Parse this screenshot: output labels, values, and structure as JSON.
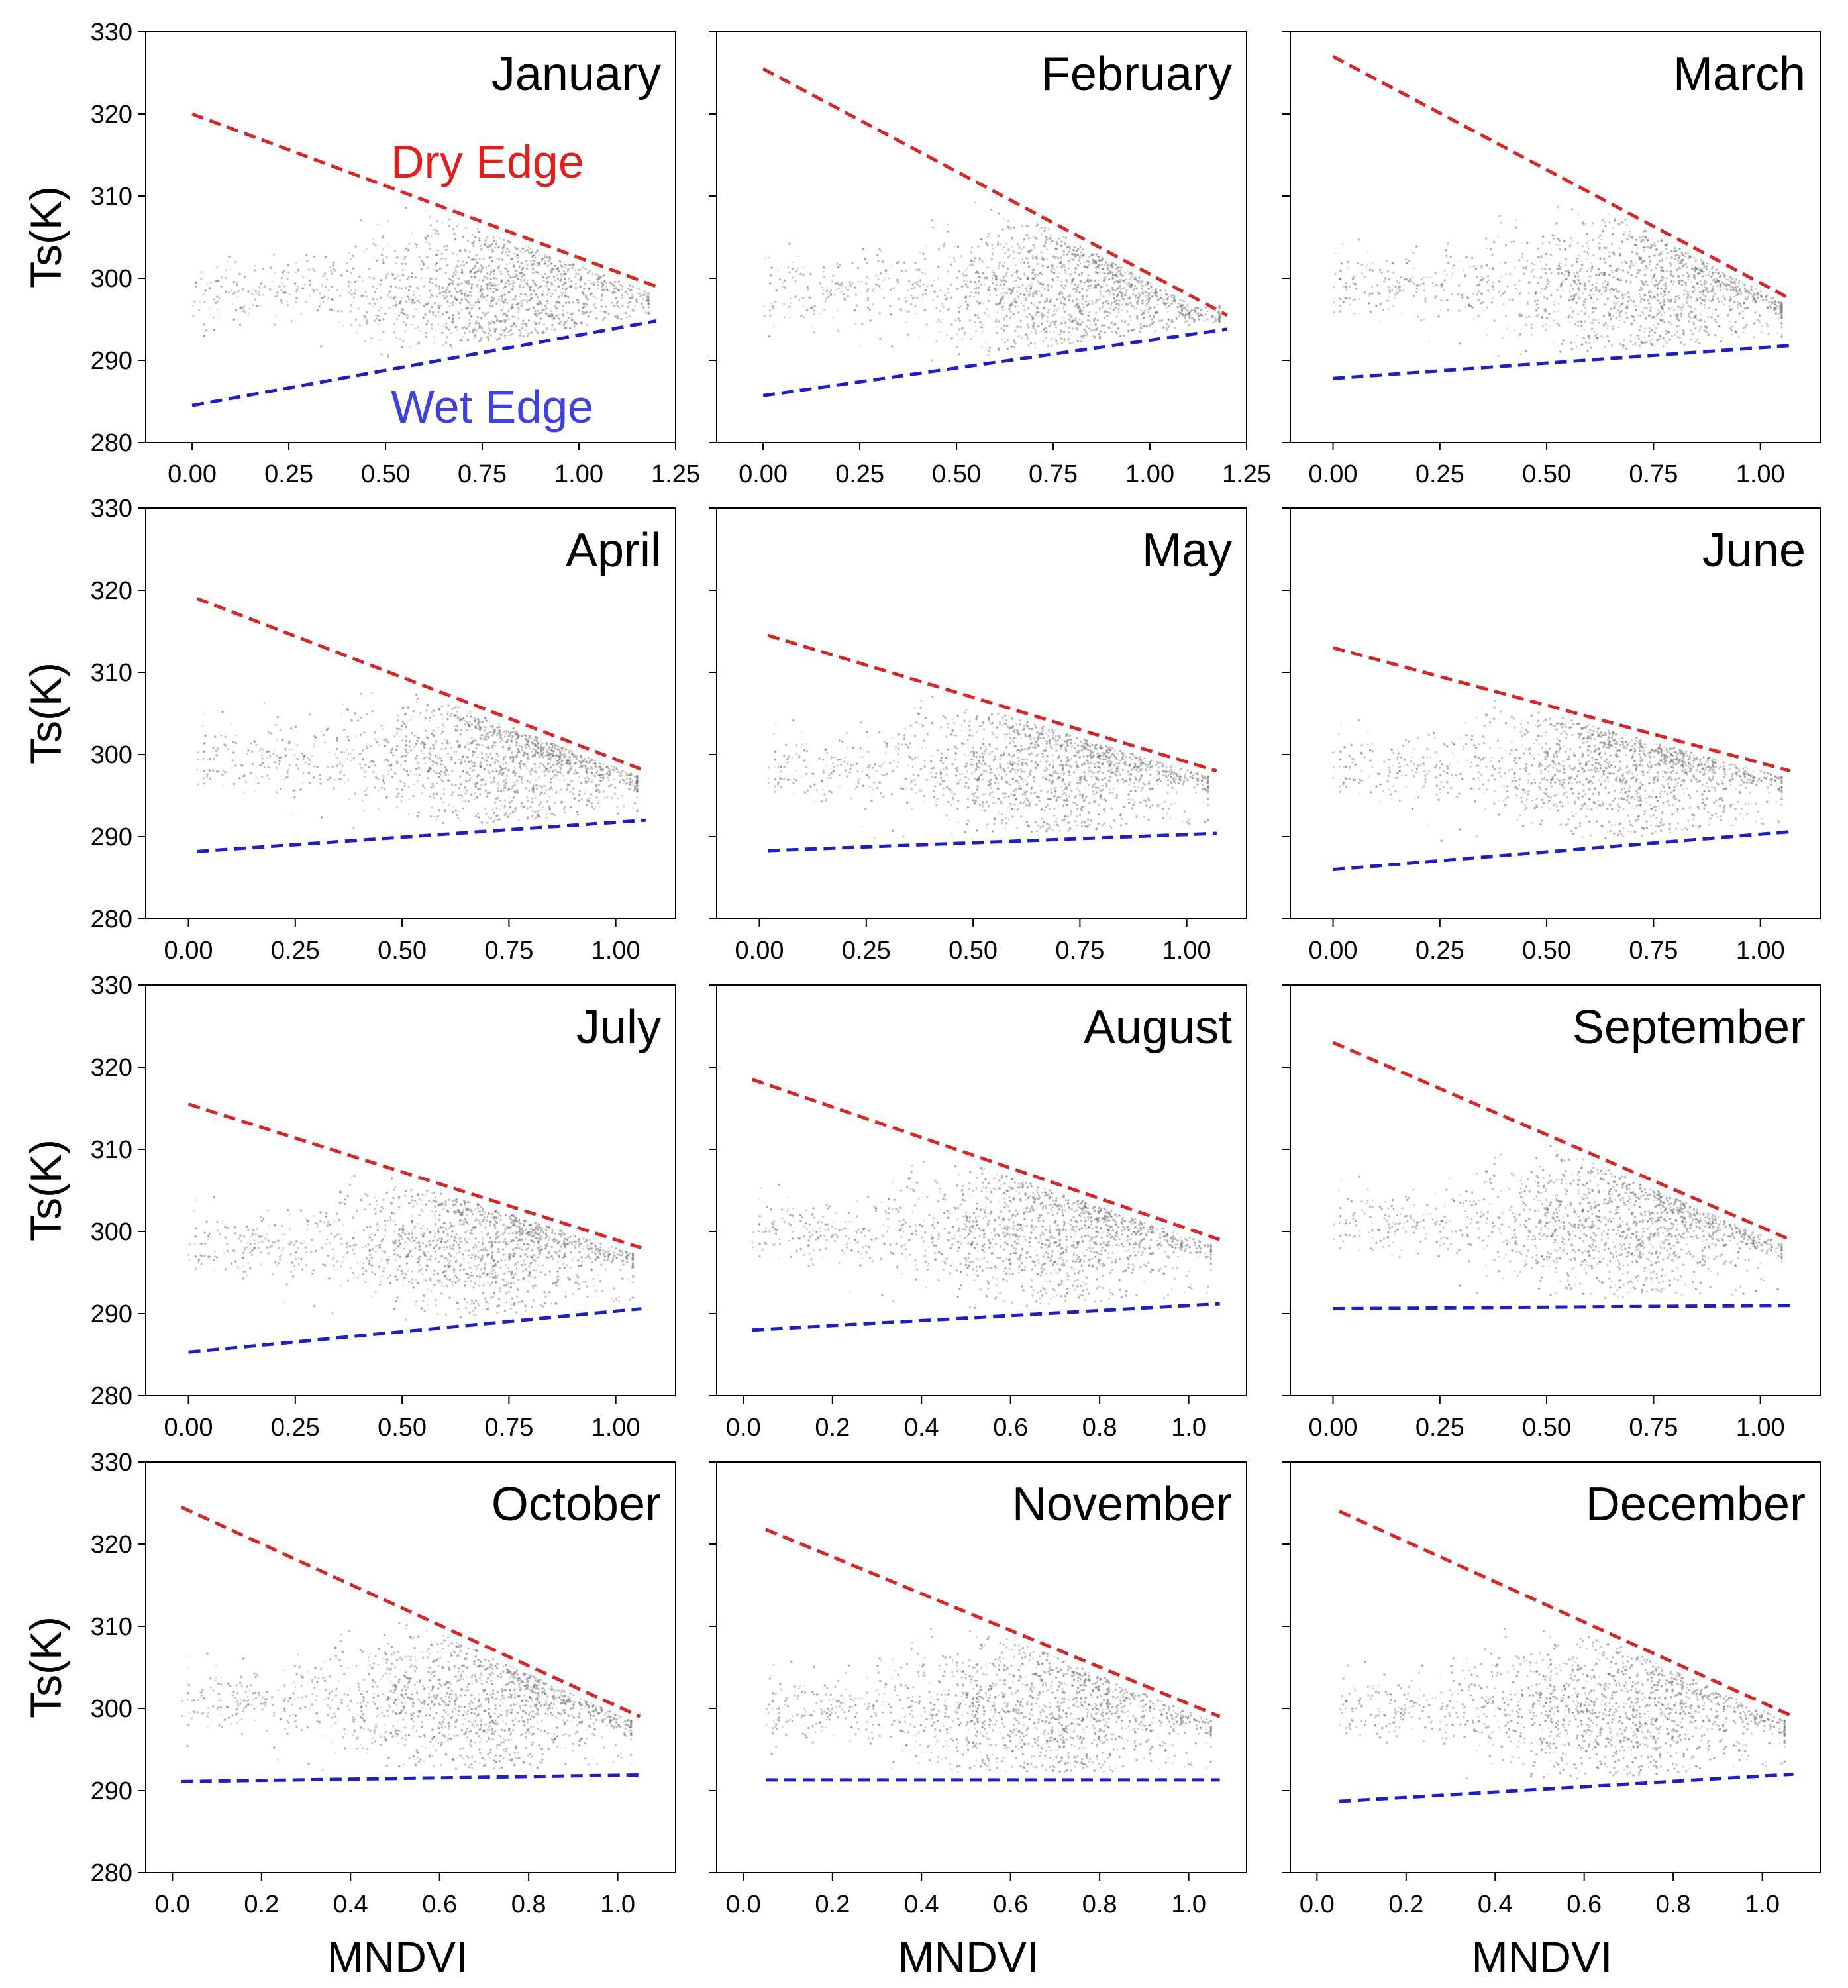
{
  "colors": {
    "dry_edge": "#d62728",
    "wet_edge": "#1f1fbf",
    "dry_label": "#e0201c",
    "wet_label": "#4040dd",
    "points": "#777777"
  },
  "labels": {
    "dry_edge": "Dry Edge",
    "wet_edge": "Wet Edge"
  },
  "chart_data": [
    {
      "type": "scatter",
      "title": "January",
      "xlim": [
        -0.12,
        1.25
      ],
      "ylim": [
        280,
        330
      ],
      "xticks": [
        "0.00",
        "0.25",
        "0.50",
        "0.75",
        "1.00",
        "1.25"
      ],
      "yticks": [
        "280",
        "290",
        "300",
        "310",
        "320",
        "330"
      ],
      "ylabel": "Ts(K)",
      "xlabel": "",
      "dry_edge": [
        [
          0.0,
          320
        ],
        [
          1.2,
          299
        ]
      ],
      "wet_edge": [
        [
          0.0,
          284.5
        ],
        [
          1.2,
          294.8
        ]
      ],
      "cloud": {
        "x_range": [
          0.0,
          1.2
        ],
        "center": [
          0.8,
          298.5
        ],
        "spread_ts": 4
      }
    },
    {
      "type": "scatter",
      "title": "February",
      "xlim": [
        -0.12,
        1.25
      ],
      "ylim": [
        280,
        330
      ],
      "xticks": [
        "0.00",
        "0.25",
        "0.50",
        "0.75",
        "1.00",
        "1.25"
      ],
      "yticks": [
        "280",
        "290",
        "300",
        "310",
        "320",
        "330"
      ],
      "ylabel": "",
      "xlabel": "",
      "dry_edge": [
        [
          0.0,
          325.5
        ],
        [
          1.2,
          295.5
        ]
      ],
      "wet_edge": [
        [
          0.0,
          285.7
        ],
        [
          1.2,
          293.8
        ]
      ],
      "cloud": {
        "x_range": [
          0.0,
          1.2
        ],
        "center": [
          0.8,
          298.5
        ],
        "spread_ts": 4
      }
    },
    {
      "type": "scatter",
      "title": "March",
      "xlim": [
        -0.1,
        1.14
      ],
      "ylim": [
        280,
        330
      ],
      "xticks": [
        "0.00",
        "0.25",
        "0.50",
        "0.75",
        "1.00"
      ],
      "yticks": [
        "280",
        "290",
        "300",
        "310",
        "320",
        "330"
      ],
      "ylabel": "",
      "xlabel": "",
      "dry_edge": [
        [
          0.0,
          327
        ],
        [
          1.07,
          297.5
        ]
      ],
      "wet_edge": [
        [
          0.0,
          287.8
        ],
        [
          1.07,
          291.8
        ]
      ],
      "cloud": {
        "x_range": [
          0.0,
          1.07
        ],
        "center": [
          0.75,
          299
        ],
        "spread_ts": 4
      }
    },
    {
      "type": "scatter",
      "title": "April",
      "xlim": [
        -0.1,
        1.14
      ],
      "ylim": [
        280,
        330
      ],
      "xticks": [
        "0.00",
        "0.25",
        "0.50",
        "0.75",
        "1.00"
      ],
      "yticks": [
        "280",
        "290",
        "300",
        "310",
        "320",
        "330"
      ],
      "ylabel": "Ts(K)",
      "xlabel": "",
      "dry_edge": [
        [
          0.02,
          319
        ],
        [
          1.07,
          298
        ]
      ],
      "wet_edge": [
        [
          0.02,
          288.2
        ],
        [
          1.07,
          292
        ]
      ],
      "cloud": {
        "x_range": [
          0.02,
          1.07
        ],
        "center": [
          0.75,
          299.5
        ],
        "spread_ts": 4
      }
    },
    {
      "type": "scatter",
      "title": "May",
      "xlim": [
        -0.1,
        1.14
      ],
      "ylim": [
        280,
        330
      ],
      "xticks": [
        "0.00",
        "0.25",
        "0.50",
        "0.75",
        "1.00"
      ],
      "yticks": [
        "280",
        "290",
        "300",
        "310",
        "320",
        "330"
      ],
      "ylabel": "",
      "xlabel": "",
      "dry_edge": [
        [
          0.02,
          314.5
        ],
        [
          1.07,
          298
        ]
      ],
      "wet_edge": [
        [
          0.02,
          288.3
        ],
        [
          1.07,
          290.4
        ]
      ],
      "cloud": {
        "x_range": [
          0.02,
          1.07
        ],
        "center": [
          0.7,
          298.5
        ],
        "spread_ts": 4
      }
    },
    {
      "type": "scatter",
      "title": "June",
      "xlim": [
        -0.1,
        1.14
      ],
      "ylim": [
        280,
        330
      ],
      "xticks": [
        "0.00",
        "0.25",
        "0.50",
        "0.75",
        "1.00"
      ],
      "yticks": [
        "280",
        "290",
        "300",
        "310",
        "320",
        "330"
      ],
      "ylabel": "",
      "xlabel": "",
      "dry_edge": [
        [
          0.0,
          313
        ],
        [
          1.07,
          298
        ]
      ],
      "wet_edge": [
        [
          0.0,
          286
        ],
        [
          1.07,
          290.6
        ]
      ],
      "cloud": {
        "x_range": [
          0.0,
          1.07
        ],
        "center": [
          0.7,
          298.5
        ],
        "spread_ts": 4
      }
    },
    {
      "type": "scatter",
      "title": "July",
      "xlim": [
        -0.1,
        1.14
      ],
      "ylim": [
        280,
        330
      ],
      "xticks": [
        "0.00",
        "0.25",
        "0.50",
        "0.75",
        "1.00"
      ],
      "yticks": [
        "280",
        "290",
        "300",
        "310",
        "320",
        "330"
      ],
      "ylabel": "Ts(K)",
      "xlabel": "",
      "dry_edge": [
        [
          0.0,
          315.5
        ],
        [
          1.06,
          298
        ]
      ],
      "wet_edge": [
        [
          0.0,
          285.3
        ],
        [
          1.06,
          290.6
        ]
      ],
      "cloud": {
        "x_range": [
          0.0,
          1.06
        ],
        "center": [
          0.7,
          298.5
        ],
        "spread_ts": 4
      }
    },
    {
      "type": "scatter",
      "title": "August",
      "xlim": [
        -0.06,
        1.13
      ],
      "ylim": [
        280,
        330
      ],
      "xticks": [
        "0.0",
        "0.2",
        "0.4",
        "0.6",
        "0.8",
        "1.0"
      ],
      "yticks": [
        "280",
        "290",
        "300",
        "310",
        "320",
        "330"
      ],
      "ylabel": "",
      "xlabel": "",
      "dry_edge": [
        [
          0.02,
          318.5
        ],
        [
          1.07,
          299
        ]
      ],
      "wet_edge": [
        [
          0.02,
          288
        ],
        [
          1.07,
          291.2
        ]
      ],
      "cloud": {
        "x_range": [
          0.02,
          1.07
        ],
        "center": [
          0.7,
          300
        ],
        "spread_ts": 4
      }
    },
    {
      "type": "scatter",
      "title": "September",
      "xlim": [
        -0.1,
        1.14
      ],
      "ylim": [
        280,
        330
      ],
      "xticks": [
        "0.00",
        "0.25",
        "0.50",
        "0.75",
        "1.00"
      ],
      "yticks": [
        "280",
        "290",
        "300",
        "310",
        "320",
        "330"
      ],
      "ylabel": "",
      "xlabel": "",
      "dry_edge": [
        [
          0.0,
          323
        ],
        [
          1.07,
          299
        ]
      ],
      "wet_edge": [
        [
          0.0,
          290.6
        ],
        [
          1.07,
          291
        ]
      ],
      "cloud": {
        "x_range": [
          0.0,
          1.07
        ],
        "center": [
          0.7,
          301
        ],
        "spread_ts": 4
      }
    },
    {
      "type": "scatter",
      "title": "October",
      "xlim": [
        -0.06,
        1.13
      ],
      "ylim": [
        280,
        330
      ],
      "xticks": [
        "0.0",
        "0.2",
        "0.4",
        "0.6",
        "0.8",
        "1.0"
      ],
      "yticks": [
        "280",
        "290",
        "300",
        "310",
        "320",
        "330"
      ],
      "ylabel": "Ts(K)",
      "xlabel": "MNDVI",
      "dry_edge": [
        [
          0.02,
          324.5
        ],
        [
          1.05,
          299
        ]
      ],
      "wet_edge": [
        [
          0.02,
          291.1
        ],
        [
          1.05,
          291.9
        ]
      ],
      "cloud": {
        "x_range": [
          0.02,
          1.05
        ],
        "center": [
          0.7,
          301
        ],
        "spread_ts": 4
      }
    },
    {
      "type": "scatter",
      "title": "November",
      "xlim": [
        -0.06,
        1.13
      ],
      "ylim": [
        280,
        330
      ],
      "xticks": [
        "0.0",
        "0.2",
        "0.4",
        "0.6",
        "0.8",
        "1.0"
      ],
      "yticks": [
        "280",
        "290",
        "300",
        "310",
        "320",
        "330"
      ],
      "ylabel": "",
      "xlabel": "MNDVI",
      "dry_edge": [
        [
          0.05,
          321.8
        ],
        [
          1.07,
          299
        ]
      ],
      "wet_edge": [
        [
          0.05,
          291.3
        ],
        [
          1.07,
          291.3
        ]
      ],
      "cloud": {
        "x_range": [
          0.05,
          1.07
        ],
        "center": [
          0.7,
          300
        ],
        "spread_ts": 4
      }
    },
    {
      "type": "scatter",
      "title": "December",
      "xlim": [
        -0.06,
        1.13
      ],
      "ylim": [
        280,
        330
      ],
      "xticks": [
        "0.0",
        "0.2",
        "0.4",
        "0.6",
        "0.8",
        "1.0"
      ],
      "yticks": [
        "280",
        "290",
        "300",
        "310",
        "320",
        "330"
      ],
      "ylabel": "",
      "xlabel": "MNDVI",
      "dry_edge": [
        [
          0.05,
          324
        ],
        [
          1.07,
          299
        ]
      ],
      "wet_edge": [
        [
          0.05,
          288.7
        ],
        [
          1.07,
          292
        ]
      ],
      "cloud": {
        "x_range": [
          0.05,
          1.07
        ],
        "center": [
          0.7,
          300
        ],
        "spread_ts": 4
      }
    }
  ]
}
